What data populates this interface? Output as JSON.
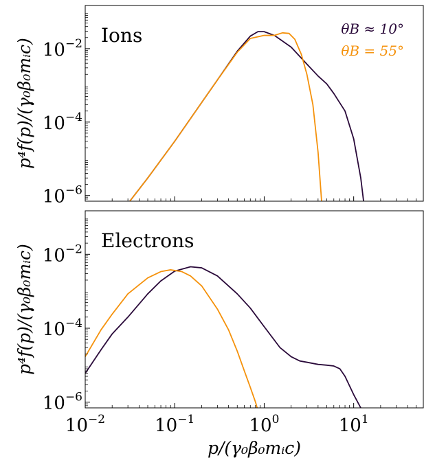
{
  "chart_data": [
    {
      "type": "line",
      "panel_label": "Ions",
      "xlabel": "",
      "ylabel": "p⁴f(p)/(γ₀β₀mᵢc)",
      "xscale": "log",
      "yscale": "log",
      "xlim": [
        0.01,
        60
      ],
      "ylim": [
        7e-07,
        0.15
      ],
      "yticks": [
        {
          "value": 0.01,
          "base": "10",
          "exp": "−2"
        },
        {
          "value": 0.0001,
          "base": "10",
          "exp": "−4"
        },
        {
          "value": 1e-06,
          "base": "10",
          "exp": "−6"
        }
      ],
      "show_x_tick_labels": false,
      "grid": false,
      "legend": {
        "placement": "top-right",
        "entries": [
          {
            "label": "θB ≈ 10°",
            "color": "#2a0a3a"
          },
          {
            "label": "θB = 55°",
            "color": "#f5920c"
          }
        ]
      },
      "series": [
        {
          "color": "#2a0a3a",
          "x": [
            0.03,
            0.05,
            0.1,
            0.2,
            0.3,
            0.5,
            0.7,
            0.85,
            1.0,
            1.3,
            2.0,
            3.0,
            4.0,
            5.0,
            6.0,
            8.0,
            10.0,
            12.0,
            13.0
          ],
          "y": [
            6e-07,
            3e-06,
            3e-05,
            0.00034,
            0.0014,
            0.0085,
            0.022,
            0.029,
            0.029,
            0.023,
            0.011,
            0.0038,
            0.0018,
            0.0011,
            0.0006,
            0.0002,
            3.5e-05,
            3e-06,
            6e-07
          ]
        },
        {
          "color": "#f5920c",
          "x": [
            0.03,
            0.05,
            0.1,
            0.2,
            0.3,
            0.5,
            0.7,
            1.0,
            1.3,
            1.6,
            1.9,
            2.2,
            2.6,
            3.0,
            3.5,
            4.0,
            4.4
          ],
          "y": [
            6e-07,
            3e-06,
            3e-05,
            0.00034,
            0.0014,
            0.008,
            0.019,
            0.023,
            0.023,
            0.027,
            0.026,
            0.018,
            0.007,
            0.002,
            0.0003,
            1.5e-05,
            6e-07
          ]
        }
      ]
    },
    {
      "type": "line",
      "panel_label": "Electrons",
      "xlabel": "p/(γ₀β₀mᵢc)",
      "ylabel": "p⁴f(p)/(γ₀β₀mᵢc)",
      "xscale": "log",
      "yscale": "log",
      "xlim": [
        0.01,
        60
      ],
      "ylim": [
        7e-07,
        0.15
      ],
      "yticks": [
        {
          "value": 0.01,
          "base": "10",
          "exp": "−2"
        },
        {
          "value": 0.0001,
          "base": "10",
          "exp": "−4"
        },
        {
          "value": 1e-06,
          "base": "10",
          "exp": "−6"
        }
      ],
      "xticks": [
        {
          "value": 0.01,
          "base": "10",
          "exp": "−2"
        },
        {
          "value": 0.1,
          "base": "10",
          "exp": "−1"
        },
        {
          "value": 1,
          "base": "10",
          "exp": "0"
        },
        {
          "value": 10,
          "base": "10",
          "exp": "1"
        }
      ],
      "show_x_tick_labels": true,
      "grid": false,
      "series": [
        {
          "color": "#2a0a3a",
          "x": [
            0.01,
            0.015,
            0.02,
            0.03,
            0.05,
            0.07,
            0.1,
            0.15,
            0.2,
            0.3,
            0.5,
            0.7,
            1.0,
            1.5,
            2.0,
            2.5,
            3.0,
            4.0,
            5.0,
            6.0,
            7.0,
            8.0,
            10.0,
            12.0,
            13.0
          ],
          "y": [
            6e-06,
            2.6e-05,
            7e-05,
            0.0002,
            0.00085,
            0.0019,
            0.0035,
            0.0046,
            0.0043,
            0.0026,
            0.00085,
            0.00035,
            0.00011,
            3e-05,
            1.7e-05,
            1.3e-05,
            1.2e-05,
            1.05e-05,
            1e-05,
            9.5e-06,
            8e-06,
            5e-06,
            1.6e-06,
            7e-07,
            5e-07
          ]
        },
        {
          "color": "#f5920c",
          "x": [
            0.01,
            0.015,
            0.02,
            0.03,
            0.05,
            0.07,
            0.09,
            0.12,
            0.15,
            0.2,
            0.3,
            0.4,
            0.5,
            0.6,
            0.7,
            0.8,
            0.85
          ],
          "y": [
            1.7e-05,
            9e-05,
            0.00024,
            0.00085,
            0.0023,
            0.0034,
            0.0038,
            0.0034,
            0.0026,
            0.0014,
            0.00033,
            9e-05,
            2.4e-05,
            7e-06,
            2.5e-06,
            1e-06,
            6e-07
          ]
        }
      ]
    }
  ]
}
